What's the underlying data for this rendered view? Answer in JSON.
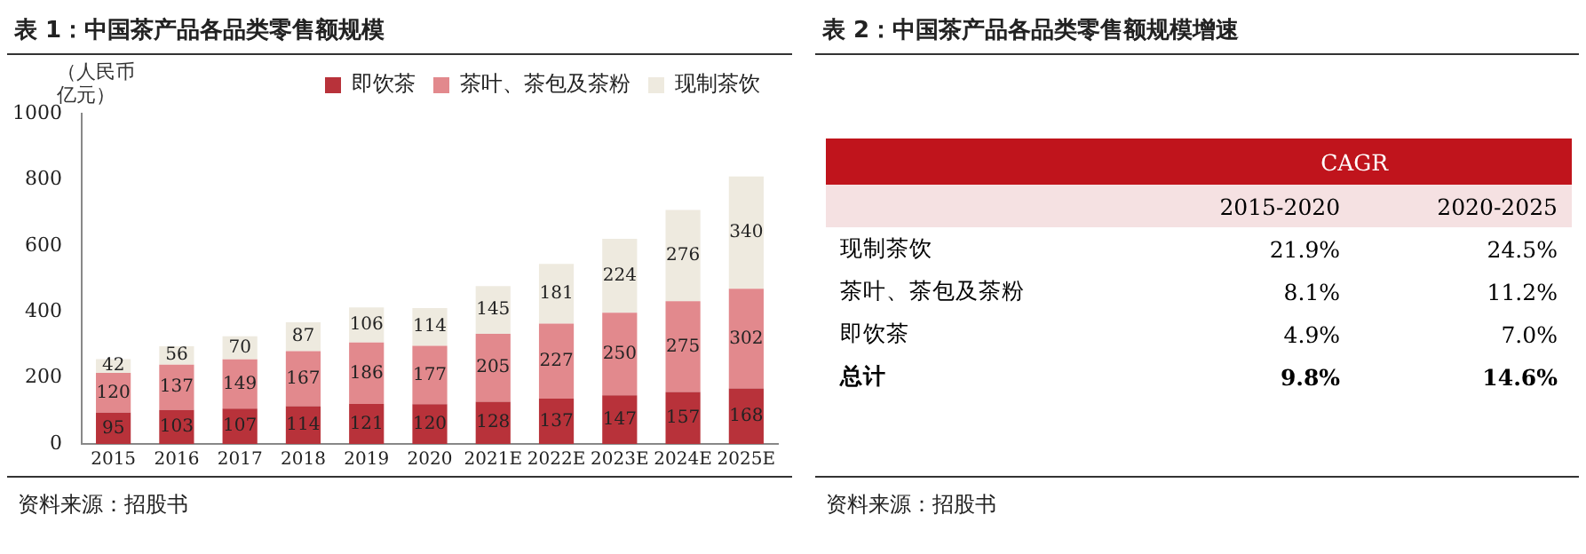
{
  "chart_data": [
    {
      "type": "bar",
      "title": "表 1：中国茶产品各品类零售额规模",
      "ylabel": "（人民币亿元）",
      "stacked": true,
      "legend": "top",
      "data_labels": true,
      "grid": false,
      "categories": [
        "2015",
        "2016",
        "2017",
        "2018",
        "2019",
        "2020",
        "2021E",
        "2022E",
        "2023E",
        "2024E",
        "2025E"
      ],
      "ylim": [
        0,
        1000
      ],
      "yticks": [
        0,
        200,
        400,
        600,
        800,
        1000
      ],
      "series": [
        {
          "name": "即饮茶",
          "color": "#b8323a",
          "values": [
            95,
            103,
            107,
            114,
            121,
            120,
            128,
            137,
            147,
            157,
            168
          ]
        },
        {
          "name": "茶叶、茶包及茶粉",
          "color": "#e2898d",
          "values": [
            120,
            137,
            149,
            167,
            186,
            177,
            205,
            227,
            250,
            275,
            302
          ]
        },
        {
          "name": "现制茶饮",
          "color": "#eeeadf",
          "values": [
            42,
            56,
            70,
            87,
            106,
            114,
            145,
            181,
            224,
            276,
            340
          ]
        }
      ],
      "annotations": [
        "资料来源：招股书"
      ]
    },
    {
      "type": "other",
      "title": "表 2：中国茶产品各品类零售额规模增速",
      "legend_title": "CAGR",
      "categories": [
        "现制茶饮",
        "茶叶、茶包及茶粉",
        "即饮茶",
        "总计"
      ],
      "series": [
        {
          "name": "2015-2020",
          "values": [
            21.9,
            8.1,
            4.9,
            9.8
          ],
          "value_labels": [
            "21.9%",
            "8.1%",
            "4.9%",
            "9.8%"
          ]
        },
        {
          "name": "2020-2025",
          "values": [
            24.5,
            11.2,
            7.0,
            14.6
          ],
          "value_labels": [
            "24.5%",
            "11.2%",
            "7.0%",
            "14.6%"
          ]
        }
      ],
      "annotations": [
        "资料来源：招股书"
      ]
    }
  ]
}
